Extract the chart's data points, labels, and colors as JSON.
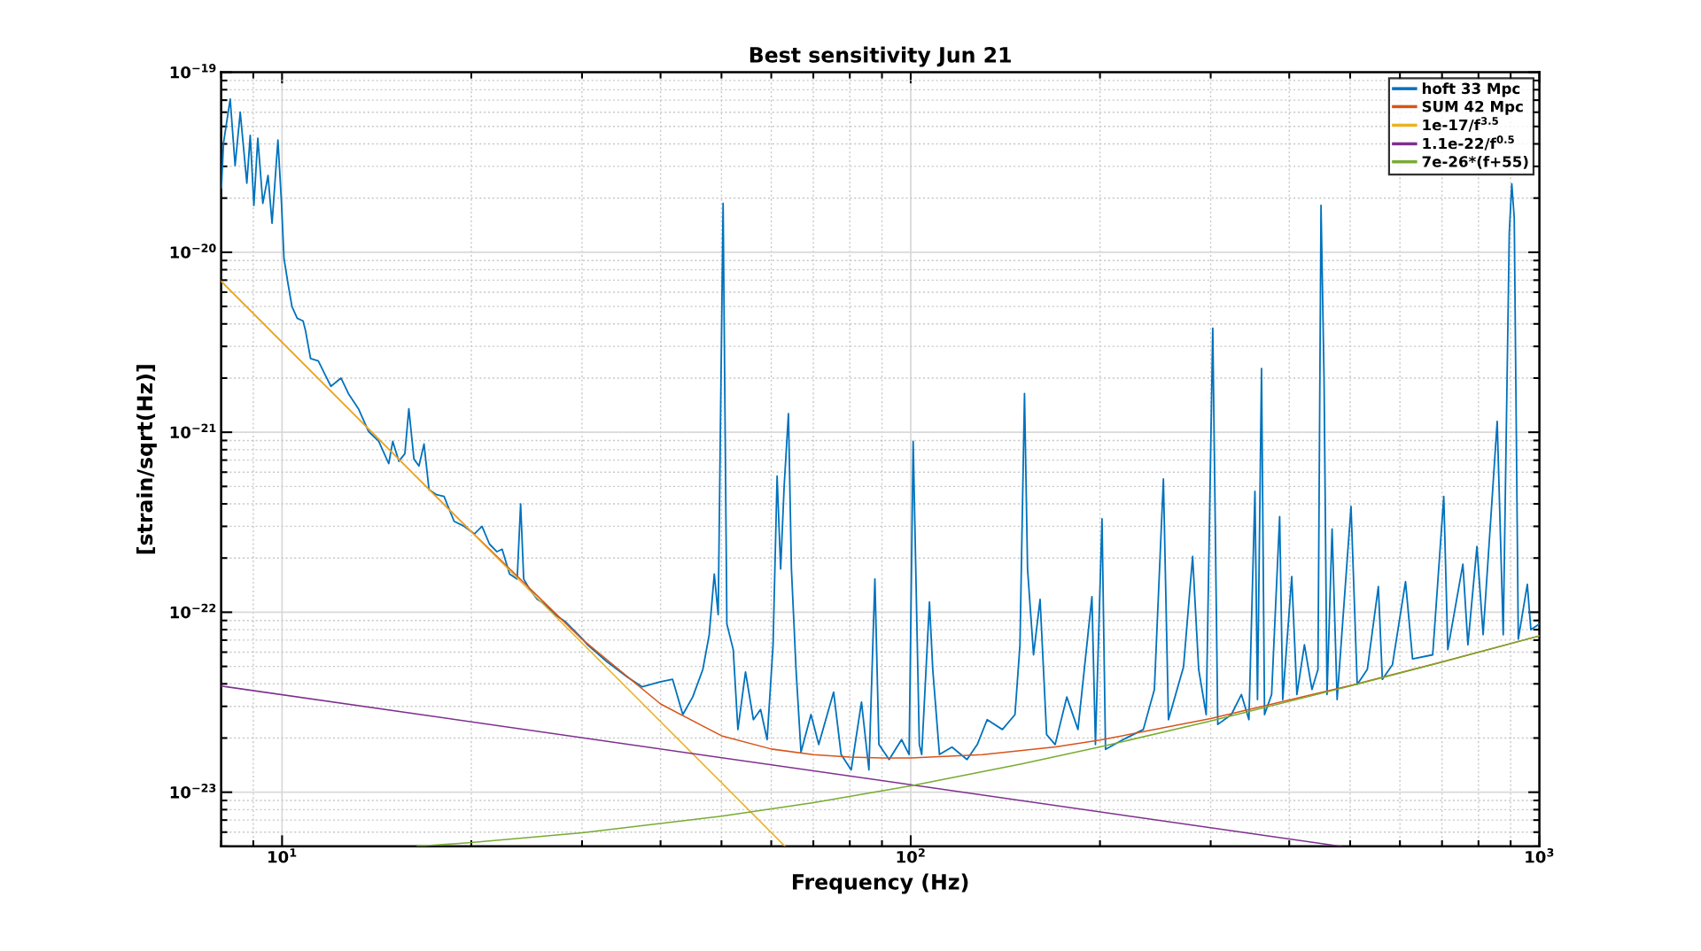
{
  "chart_data": {
    "type": "line",
    "title": "Best sensitivity Jun 21",
    "xlabel": "Frequency (Hz)",
    "ylabel": "[strain/sqrt(Hz)]",
    "log": "xy",
    "grid": true,
    "legend": "top right",
    "marker": "none",
    "line_style": "solid",
    "xlim": [
      8,
      1000
    ],
    "ylim": [
      5e-24,
      1e-19
    ],
    "xticks": [
      {
        "value": 10,
        "label": "10$^{1}$"
      },
      {
        "value": 100,
        "label": "10$^{2}$"
      },
      {
        "value": 1000,
        "label": "10$^{3}$"
      }
    ],
    "yticks": [
      {
        "value": 1e-23,
        "label": "10$^{−23}$"
      },
      {
        "value": 1e-22,
        "label": "10$^{−22}$"
      },
      {
        "value": 1e-21,
        "label": "10$^{−21}$"
      },
      {
        "value": 1e-20,
        "label": "10$^{−20}$"
      },
      {
        "value": 1e-19,
        "label": "10$^{−19}$"
      }
    ],
    "series": [
      {
        "name": "hoft 33 Mpc",
        "color": "#0072bd",
        "x": [
          8.01,
          8.07,
          8.27,
          8.42,
          8.58,
          8.79,
          8.9,
          9.02,
          9.15,
          9.32,
          9.5,
          9.64,
          9.85,
          9.98,
          10.07,
          10.22,
          10.37,
          10.57,
          10.8,
          10.9,
          11.1,
          11.42,
          11.74,
          11.96,
          12.41,
          12.75,
          13.23,
          13.73,
          14.25,
          14.78,
          15.0,
          15.34,
          15.68,
          15.91,
          16.21,
          16.51,
          16.82,
          17.13,
          17.61,
          18.1,
          18.78,
          19.49,
          20.22,
          20.8,
          21.38,
          21.97,
          22.39,
          23.01,
          23.66,
          23.96,
          24.23,
          24.77,
          25.46,
          26.17,
          27.16,
          28.18,
          30.06,
          30.6,
          32.9,
          35.4,
          37.4,
          39.9,
          41.8,
          43.4,
          45.0,
          46.7,
          47.8,
          48.7,
          49.4,
          50.3,
          51.0,
          52.2,
          53.1,
          54.6,
          56.2,
          57.7,
          59.1,
          60.4,
          61.3,
          62.1,
          62.9,
          63.9,
          64.6,
          65.7,
          66.9,
          69.4,
          71.4,
          75.4,
          77.5,
          80.4,
          83.5,
          85.8,
          87.7,
          89.0,
          92.4,
          96.7,
          99.4,
          100.9,
          103.2,
          104.1,
          107.1,
          108.4,
          111.1,
          116.3,
          122.9,
          127.6,
          132.3,
          139.9,
          146.5,
          149.2,
          151.7,
          153.4,
          156.8,
          160.6,
          164.5,
          169.7,
          177.1,
          184.5,
          194.2,
          196.7,
          201.5,
          204.1,
          217.7,
          234.4,
          244.1,
          252.3,
          257.0,
          271.6,
          280.8,
          287.1,
          295.1,
          302.3,
          307.9,
          323.6,
          335.7,
          345.1,
          352.8,
          356.1,
          361.4,
          365.4,
          375.0,
          386.2,
          390.6,
          403.7,
          411.4,
          422.9,
          434.7,
          444.4,
          449.4,
          454.4,
          459.4,
          468.0,
          476.7,
          501.6,
          513.1,
          532.4,
          554.4,
          562.6,
          583.7,
          612.4,
          628.4,
          676.5,
          704.5,
          715.0,
          755.6,
          769.6,
          795.5,
          813.7,
          856.8,
          875.9,
          895.5,
          903.8,
          912.0,
          925.6,
          956.7,
          969.2,
          1000
        ],
        "values": [
          2.28e-20,
          4.05e-20,
          7.1e-20,
          3.03e-20,
          6e-20,
          2.42e-20,
          4.46e-20,
          1.82e-20,
          4.3e-20,
          1.87e-20,
          2.67e-20,
          1.45e-20,
          4.2e-20,
          1.87e-20,
          9.3e-21,
          6.7e-21,
          5e-21,
          4.3e-21,
          4.15e-21,
          3.65e-21,
          2.57e-21,
          2.49e-21,
          2.05e-21,
          1.8e-21,
          2e-21,
          1.64e-21,
          1.35e-21,
          1.01e-21,
          8.9e-22,
          6.7e-22,
          8.9e-22,
          6.9e-22,
          7.6e-22,
          1.35e-21,
          7.1e-22,
          6.5e-22,
          8.6e-22,
          4.8e-22,
          4.5e-22,
          4.4e-22,
          3.2e-22,
          3e-22,
          2.72e-22,
          3e-22,
          2.39e-22,
          2.17e-22,
          2.24e-22,
          1.63e-22,
          1.53e-22,
          4e-22,
          1.53e-22,
          1.34e-22,
          1.18e-22,
          1.11e-22,
          9.7e-23,
          8.9e-23,
          7.1e-23,
          6.6e-23,
          5.3e-23,
          4.37e-23,
          3.85e-23,
          4.1e-23,
          4.24e-23,
          2.7e-23,
          3.38e-23,
          4.81e-23,
          7.5e-23,
          1.63e-22,
          9.7e-23,
          1.87e-20,
          8.6e-23,
          6.2e-23,
          2.23e-23,
          4.66e-23,
          2.53e-23,
          2.88e-23,
          1.96e-23,
          6.6e-23,
          5.7e-22,
          1.74e-22,
          5e-22,
          1.27e-21,
          1.74e-22,
          4.81e-23,
          1.67e-23,
          2.7e-23,
          1.84e-23,
          3.6e-23,
          1.62e-23,
          1.33e-23,
          3.17e-23,
          1.33e-23,
          1.53e-22,
          1.84e-23,
          1.52e-23,
          1.96e-23,
          1.62e-23,
          8.9e-22,
          1.84e-23,
          1.62e-23,
          1.14e-22,
          4.81e-23,
          1.62e-23,
          1.78e-23,
          1.52e-23,
          1.84e-23,
          2.53e-23,
          2.23e-23,
          2.7e-23,
          6.6e-23,
          1.64e-21,
          1.74e-22,
          5.8e-23,
          1.18e-22,
          2.09e-23,
          1.84e-23,
          3.38e-23,
          2.23e-23,
          1.22e-22,
          1.84e-23,
          3.3e-22,
          1.73e-23,
          1.96e-23,
          2.23e-23,
          3.72e-23,
          5.5e-22,
          2.53e-23,
          4.97e-23,
          2.04e-22,
          4.81e-23,
          2.7e-23,
          3.78e-21,
          2.38e-23,
          2.7e-23,
          3.49e-23,
          2.53e-23,
          4.69e-22,
          3.27e-23,
          2.26e-21,
          2.7e-23,
          3.49e-23,
          3.4e-22,
          3.27e-23,
          1.58e-22,
          3.49e-23,
          6.6e-23,
          3.72e-23,
          4.81e-23,
          1.82e-20,
          1.99e-21,
          3.49e-23,
          2.9e-22,
          3.27e-23,
          3.87e-22,
          3.97e-23,
          4.81e-23,
          1.39e-22,
          4.24e-23,
          5.1e-23,
          1.48e-22,
          5.5e-23,
          5.8e-23,
          4.4e-22,
          6.2e-23,
          1.85e-22,
          6.6e-23,
          2.32e-22,
          7.5e-23,
          1.15e-21,
          7.5e-23,
          1.28e-20,
          2.4e-20,
          1.55e-20,
          7.1e-23,
          1.43e-22,
          8e-23,
          8.6e-23
        ]
      },
      {
        "name": "SUM 42 Mpc",
        "color": "#d95319",
        "x": [
          8,
          10,
          15,
          20,
          30,
          40,
          50,
          60,
          70,
          80,
          90,
          100,
          130,
          170,
          200,
          300,
          500,
          700,
          1000
        ],
        "values": [
          6.906e-21,
          3.162e-21,
          7.655e-22,
          2.806e-22,
          7.08e-23,
          3.094e-23,
          2.059e-23,
          1.738e-23,
          1.617e-23,
          1.567e-23,
          1.548e-23,
          1.548e-23,
          1.615e-23,
          1.787e-23,
          1.947e-23,
          2.565e-23,
          3.916e-23,
          5.301e-23,
          7.393e-23
        ]
      },
      {
        "name": "1e-17/f$^{3.5}$",
        "color": "#edb120",
        "x": [
          8,
          63.1
        ],
        "values": [
          6.9e-21,
          5e-24
        ]
      },
      {
        "name": "1.1e-22/f$^{0.5}$",
        "color": "#7e2f8e",
        "x": [
          8,
          484
        ],
        "values": [
          3.89e-23,
          5e-24
        ]
      },
      {
        "name": "7e-26*(f+55)",
        "color": "#77ac30",
        "x": [
          16.4,
          20,
          30,
          50,
          70,
          100,
          150,
          200,
          300,
          500,
          700,
          1000
        ],
        "values": [
          5e-24,
          5.25e-24,
          5.95e-24,
          7.35e-24,
          8.75e-24,
          1.085e-23,
          1.435e-23,
          1.785e-23,
          2.485e-23,
          3.885e-23,
          5.285e-23,
          7.385e-23
        ]
      }
    ]
  }
}
